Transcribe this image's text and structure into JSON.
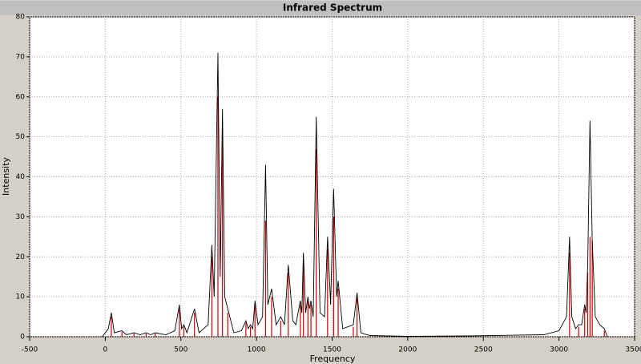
{
  "chart_data": {
    "type": "line",
    "title": "Infrared Spectrum",
    "x_label": "Frequency",
    "y_label": "Intensity",
    "xlim": [
      -500,
      3500
    ],
    "xticks": [
      -500,
      0,
      500,
      1000,
      1500,
      2000,
      2500,
      3000,
      3500
    ],
    "ylim": [
      0,
      80
    ],
    "yticks": [
      0,
      10,
      20,
      30,
      40,
      50,
      60,
      70,
      80
    ],
    "grid": true,
    "sticks": {
      "color": "#cc0000",
      "x": [
        40,
        110,
        190,
        270,
        330,
        490,
        520,
        590,
        705,
        745,
        775,
        810,
        930,
        960,
        990,
        1060,
        1100,
        1160,
        1210,
        1290,
        1310,
        1340,
        1360,
        1395,
        1470,
        1510,
        1540,
        1640,
        1665,
        3070,
        3130,
        3170,
        3190,
        3205,
        3220,
        3300
      ],
      "values": [
        5,
        1.2,
        0.8,
        0.8,
        0.8,
        7,
        2.5,
        6,
        20,
        60,
        49,
        6,
        3.5,
        2.5,
        8,
        29,
        10,
        4,
        16,
        8,
        18,
        9,
        8,
        47,
        22,
        30,
        12,
        2.5,
        10,
        21,
        2.5,
        7,
        16,
        25,
        24,
        1.5
      ]
    },
    "curve": {
      "color": "#000000",
      "x": [
        -20,
        20,
        40,
        60,
        110,
        140,
        190,
        230,
        270,
        300,
        330,
        400,
        460,
        490,
        505,
        520,
        540,
        590,
        620,
        680,
        705,
        720,
        745,
        760,
        775,
        790,
        810,
        850,
        900,
        930,
        945,
        960,
        975,
        990,
        1010,
        1040,
        1060,
        1075,
        1100,
        1130,
        1160,
        1185,
        1210,
        1240,
        1260,
        1290,
        1300,
        1310,
        1325,
        1340,
        1350,
        1360,
        1375,
        1395,
        1420,
        1450,
        1470,
        1490,
        1510,
        1530,
        1540,
        1570,
        1640,
        1665,
        1690,
        1750,
        2000,
        2400,
        2900,
        3000,
        3050,
        3070,
        3085,
        3110,
        3130,
        3150,
        3170,
        3180,
        3190,
        3205,
        3220,
        3240,
        3270,
        3300,
        3320
      ],
      "values": [
        0,
        2,
        6,
        1,
        1.5,
        0.5,
        1,
        0.5,
        1,
        0.5,
        1,
        0.5,
        1.5,
        8,
        2,
        3,
        1,
        7,
        1,
        3,
        23,
        10,
        71,
        15,
        57,
        10,
        7,
        1,
        1.5,
        4,
        2,
        3,
        2,
        9,
        3,
        5,
        43,
        8,
        12,
        3,
        5,
        3,
        18,
        4,
        3,
        9,
        6,
        21,
        6,
        10,
        7,
        9,
        5,
        55,
        6,
        5,
        25,
        8,
        37,
        10,
        14,
        2,
        3,
        11,
        1,
        0.3,
        0.1,
        0.2,
        0.5,
        1.5,
        5,
        25,
        5,
        2,
        3,
        3,
        8,
        6,
        18,
        54,
        24,
        5,
        3,
        2,
        0
      ]
    }
  }
}
